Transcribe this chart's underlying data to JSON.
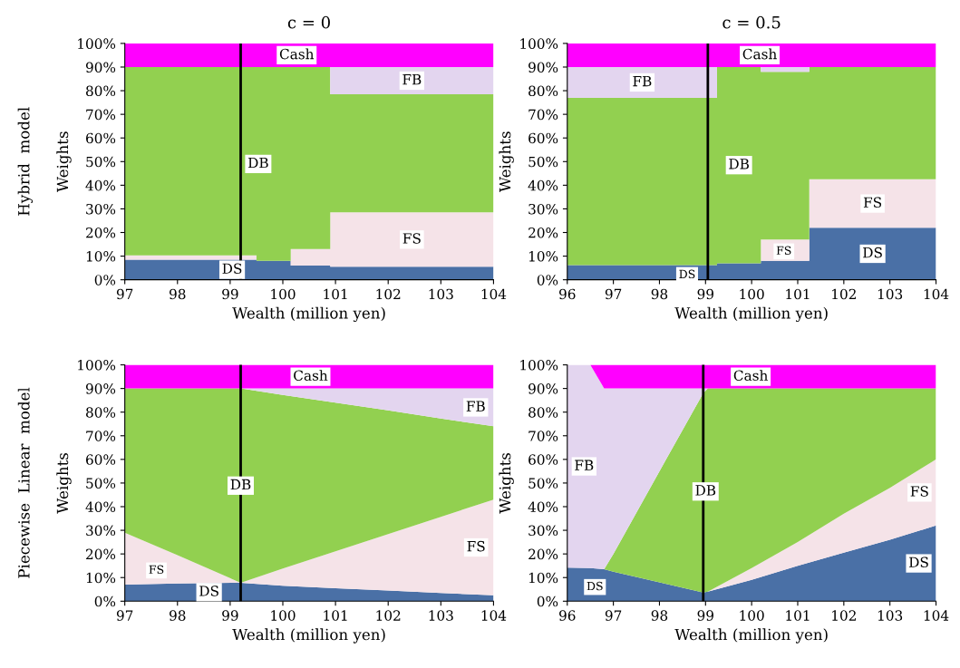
{
  "chart_data": [
    {
      "type": "area",
      "stacked": true,
      "title": "c = 0",
      "xlabel": "Wealth (million yen)",
      "ylabel": "Weights",
      "annotations": [
        "Hybrid  model"
      ],
      "legend": false,
      "grid": false,
      "x": [
        97,
        99.5,
        99.5,
        100.15,
        100.15,
        100.9,
        100.9,
        104
      ],
      "series": [
        {
          "name": "DS",
          "color": "#4a70a6",
          "values": [
            8.5,
            8.5,
            8,
            8,
            6,
            6,
            5.5,
            5.5
          ]
        },
        {
          "name": "FS",
          "color": "#f5e3e8",
          "values": [
            1.8,
            1.8,
            0,
            0,
            7,
            7,
            23,
            23
          ]
        },
        {
          "name": "DB",
          "color": "#92d050",
          "values": [
            79.7,
            79.7,
            82,
            82,
            77,
            77,
            50,
            50
          ]
        },
        {
          "name": "FB",
          "color": "#e3d5ef",
          "values": [
            0,
            0,
            0,
            0,
            0,
            0,
            11.5,
            11.5
          ]
        },
        {
          "name": "Cash",
          "color": "#ff00ff",
          "values": [
            10,
            10,
            10,
            10,
            10,
            10,
            10,
            10
          ]
        }
      ],
      "ref_lines": [
        {
          "axis": "x",
          "value": 99.2,
          "color": "#000000"
        }
      ],
      "xlim": [
        97,
        104
      ],
      "xticks": [
        97,
        98,
        99,
        100,
        101,
        102,
        103,
        104
      ],
      "ylim": [
        0,
        100
      ],
      "yticks": [
        {
          "value": 0,
          "label": "0%"
        },
        {
          "value": 10,
          "label": "10%"
        },
        {
          "value": 20,
          "label": "20%"
        },
        {
          "value": 30,
          "label": "30%"
        },
        {
          "value": 40,
          "label": "40%"
        },
        {
          "value": 50,
          "label": "50%"
        },
        {
          "value": 60,
          "label": "60%"
        },
        {
          "value": 70,
          "label": "70%"
        },
        {
          "value": 80,
          "label": "80%"
        },
        {
          "value": 90,
          "label": "90%"
        },
        {
          "value": 100,
          "label": "100%"
        }
      ]
    },
    {
      "type": "area",
      "stacked": true,
      "title": "c = 0.5",
      "xlabel": "Wealth (million yen)",
      "ylabel": "Weights",
      "legend": false,
      "grid": false,
      "annotations": [
        {
          "text": "FS",
          "x": 100.7,
          "y": 12
        },
        {
          "text": "DS",
          "x": 98.6,
          "y": 2
        }
      ],
      "x": [
        96,
        99.25,
        99.25,
        100.2,
        100.2,
        101.25,
        101.25,
        104
      ],
      "series": [
        {
          "name": "DS",
          "color": "#4a70a6",
          "values": [
            6.2,
            6.2,
            7,
            7,
            8,
            8,
            22,
            22
          ]
        },
        {
          "name": "FS",
          "color": "#f5e3e8",
          "values": [
            0,
            0,
            0,
            0,
            9,
            9,
            20.5,
            20.5
          ]
        },
        {
          "name": "DB",
          "color": "#92d050",
          "values": [
            70.8,
            70.8,
            83,
            83,
            71,
            71,
            47.5,
            47.5
          ]
        },
        {
          "name": "FB",
          "color": "#e3d5ef",
          "values": [
            13,
            13,
            0,
            0,
            2,
            2,
            0,
            0
          ]
        },
        {
          "name": "Cash",
          "color": "#ff00ff",
          "values": [
            10,
            10,
            10,
            10,
            10,
            10,
            10,
            10
          ]
        }
      ],
      "ref_lines": [
        {
          "axis": "x",
          "value": 99.05,
          "color": "#000000"
        }
      ],
      "xlim": [
        96,
        104
      ],
      "xticks": [
        96,
        97,
        98,
        99,
        100,
        101,
        102,
        103,
        104
      ],
      "ylim": [
        0,
        100
      ],
      "yticks": [
        {
          "value": 0,
          "label": "0%"
        },
        {
          "value": 10,
          "label": "10%"
        },
        {
          "value": 20,
          "label": "20%"
        },
        {
          "value": 30,
          "label": "30%"
        },
        {
          "value": 40,
          "label": "40%"
        },
        {
          "value": 50,
          "label": "50%"
        },
        {
          "value": 60,
          "label": "60%"
        },
        {
          "value": 70,
          "label": "70%"
        },
        {
          "value": 80,
          "label": "80%"
        },
        {
          "value": 90,
          "label": "90%"
        },
        {
          "value": 100,
          "label": "100%"
        }
      ]
    },
    {
      "type": "area",
      "stacked": true,
      "xlabel": "Wealth (million yen)",
      "ylabel": "Weights",
      "annotations": [
        "Piecewise  Linear  model",
        {
          "text": "FS",
          "x": 97.6,
          "y": 13
        }
      ],
      "legend": false,
      "grid": false,
      "x": [
        97,
        98,
        99.2,
        100,
        101,
        102,
        103,
        104
      ],
      "series": [
        {
          "name": "DS",
          "color": "#4a70a6",
          "values": [
            7,
            7.5,
            7.8,
            6.5,
            5.5,
            4.5,
            3.5,
            2.5
          ]
        },
        {
          "name": "FS",
          "color": "#f5e3e8",
          "values": [
            22,
            12,
            0,
            7.3,
            15.6,
            23.9,
            32.2,
            40.5
          ]
        },
        {
          "name": "DB",
          "color": "#92d050",
          "values": [
            61,
            70.5,
            82.2,
            73.5,
            62.9,
            52.3,
            41.6,
            31
          ]
        },
        {
          "name": "FB",
          "color": "#e3d5ef",
          "values": [
            0,
            0,
            0,
            2.7,
            6,
            9.3,
            12.7,
            16
          ]
        },
        {
          "name": "Cash",
          "color": "#ff00ff",
          "values": [
            10,
            10,
            10,
            10,
            10,
            10,
            10,
            10
          ]
        }
      ],
      "ref_lines": [
        {
          "axis": "x",
          "value": 99.2,
          "color": "#000000"
        }
      ],
      "xlim": [
        97,
        104
      ],
      "xticks": [
        97,
        98,
        99,
        100,
        101,
        102,
        103,
        104
      ],
      "ylim": [
        0,
        100
      ],
      "yticks": [
        {
          "value": 0,
          "label": "0%"
        },
        {
          "value": 10,
          "label": "10%"
        },
        {
          "value": 20,
          "label": "20%"
        },
        {
          "value": 30,
          "label": "30%"
        },
        {
          "value": 40,
          "label": "40%"
        },
        {
          "value": 50,
          "label": "50%"
        },
        {
          "value": 60,
          "label": "60%"
        },
        {
          "value": 70,
          "label": "70%"
        },
        {
          "value": 80,
          "label": "80%"
        },
        {
          "value": 90,
          "label": "90%"
        },
        {
          "value": 100,
          "label": "100%"
        }
      ]
    },
    {
      "type": "area",
      "stacked": true,
      "xlabel": "Wealth (million yen)",
      "ylabel": "Weights",
      "legend": false,
      "grid": false,
      "annotations": [
        {
          "text": "DS",
          "x": 96.6,
          "y": 6
        }
      ],
      "x": [
        96,
        96.5,
        96.8,
        97,
        98,
        98.95,
        99.05,
        100,
        101,
        102,
        103,
        104
      ],
      "series": [
        {
          "name": "DS",
          "color": "#4a70a6",
          "values": [
            14.2,
            14,
            13.5,
            12.5,
            8,
            3.7,
            4,
            9,
            15,
            20.5,
            26,
            32
          ]
        },
        {
          "name": "FS",
          "color": "#f5e3e8",
          "values": [
            0,
            0,
            0,
            0,
            0,
            0,
            0,
            5,
            10,
            16.5,
            22,
            28
          ]
        },
        {
          "name": "DB",
          "color": "#92d050",
          "values": [
            0,
            0,
            0,
            7.5,
            47,
            84.3,
            86,
            76,
            65,
            53,
            42,
            30
          ]
        },
        {
          "name": "FB",
          "color": "#e3d5ef",
          "values": [
            85.8,
            86,
            76.5,
            70,
            35,
            2,
            0,
            0,
            0,
            0,
            0,
            0
          ]
        },
        {
          "name": "Cash",
          "color": "#ff00ff",
          "values": [
            0,
            0,
            10,
            10,
            10,
            10,
            10,
            10,
            10,
            10,
            10,
            10
          ]
        }
      ],
      "ref_lines": [
        {
          "axis": "x",
          "value": 98.95,
          "color": "#000000"
        }
      ],
      "xlim": [
        96,
        104
      ],
      "xticks": [
        96,
        97,
        98,
        99,
        100,
        101,
        102,
        103,
        104
      ],
      "ylim": [
        0,
        100
      ],
      "yticks": [
        {
          "value": 0,
          "label": "0%"
        },
        {
          "value": 10,
          "label": "10%"
        },
        {
          "value": 20,
          "label": "20%"
        },
        {
          "value": 30,
          "label": "30%"
        },
        {
          "value": 40,
          "label": "40%"
        },
        {
          "value": 50,
          "label": "50%"
        },
        {
          "value": 60,
          "label": "60%"
        },
        {
          "value": 70,
          "label": "70%"
        },
        {
          "value": 80,
          "label": "80%"
        },
        {
          "value": 90,
          "label": "90%"
        },
        {
          "value": 100,
          "label": "100%"
        }
      ]
    }
  ]
}
